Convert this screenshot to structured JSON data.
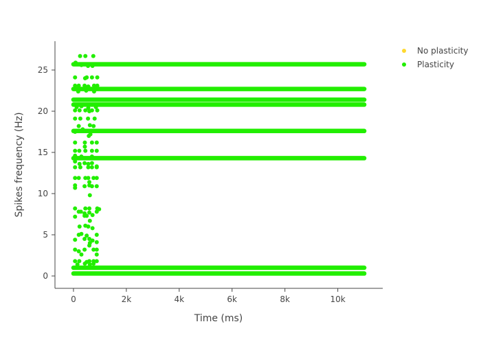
{
  "chart_data": {
    "type": "scatter",
    "title": "",
    "xlabel": "Time (ms)",
    "ylabel": "Spikes frequency (Hz)",
    "xlim": [
      -700,
      11700
    ],
    "ylim": [
      -1.5,
      28.5
    ],
    "x_ticks": [
      {
        "value": 0,
        "label": "0"
      },
      {
        "value": 2000,
        "label": "2k"
      },
      {
        "value": 4000,
        "label": "4k"
      },
      {
        "value": 6000,
        "label": "6k"
      },
      {
        "value": 8000,
        "label": "8k"
      },
      {
        "value": 10000,
        "label": "10k"
      }
    ],
    "y_ticks": [
      {
        "value": 0,
        "label": "0"
      },
      {
        "value": 5,
        "label": "5"
      },
      {
        "value": 10,
        "label": "10"
      },
      {
        "value": 15,
        "label": "15"
      },
      {
        "value": 20,
        "label": "20"
      },
      {
        "value": 25,
        "label": "25"
      }
    ],
    "grid": false,
    "legend_position": "top-right",
    "series": [
      {
        "name": "No plasticity",
        "color": "#FFD92F",
        "bands": [],
        "points": []
      },
      {
        "name": "Plasticity",
        "color": "#22EE00",
        "bands": [
          {
            "y": 0.3,
            "x_start": 0,
            "x_end": 11000
          },
          {
            "y": 1.0,
            "x_start": 0,
            "x_end": 11000
          },
          {
            "y": 14.3,
            "x_start": 0,
            "x_end": 11000
          },
          {
            "y": 17.6,
            "x_start": 0,
            "x_end": 11000
          },
          {
            "y": 20.8,
            "x_start": 0,
            "x_end": 11000
          },
          {
            "y": 21.4,
            "x_start": 0,
            "x_end": 11000
          },
          {
            "y": 22.7,
            "x_start": 0,
            "x_end": 11000
          },
          {
            "y": 25.7,
            "x_start": 0,
            "x_end": 11000
          }
        ],
        "points": [
          {
            "x": 250,
            "y": 26.7
          },
          {
            "x": 450,
            "y": 26.7
          },
          {
            "x": 750,
            "y": 26.7
          },
          {
            "x": 80,
            "y": 25.9
          },
          {
            "x": 300,
            "y": 25.6
          },
          {
            "x": 550,
            "y": 25.5
          },
          {
            "x": 720,
            "y": 25.5
          },
          {
            "x": 60,
            "y": 24.1
          },
          {
            "x": 440,
            "y": 24.0
          },
          {
            "x": 500,
            "y": 24.1
          },
          {
            "x": 700,
            "y": 24.1
          },
          {
            "x": 900,
            "y": 24.1
          },
          {
            "x": 60,
            "y": 23.1
          },
          {
            "x": 200,
            "y": 23.1
          },
          {
            "x": 420,
            "y": 23.1
          },
          {
            "x": 560,
            "y": 23.0
          },
          {
            "x": 780,
            "y": 23.1
          },
          {
            "x": 900,
            "y": 23.1
          },
          {
            "x": 180,
            "y": 22.4
          },
          {
            "x": 480,
            "y": 22.5
          },
          {
            "x": 780,
            "y": 22.4
          },
          {
            "x": 120,
            "y": 20.5
          },
          {
            "x": 300,
            "y": 20.6
          },
          {
            "x": 560,
            "y": 20.4
          },
          {
            "x": 850,
            "y": 20.5
          },
          {
            "x": 60,
            "y": 20.1
          },
          {
            "x": 230,
            "y": 20.1
          },
          {
            "x": 450,
            "y": 20.1
          },
          {
            "x": 600,
            "y": 20.0
          },
          {
            "x": 700,
            "y": 20.1
          },
          {
            "x": 900,
            "y": 20.1
          },
          {
            "x": 60,
            "y": 19.1
          },
          {
            "x": 260,
            "y": 19.1
          },
          {
            "x": 550,
            "y": 19.1
          },
          {
            "x": 800,
            "y": 19.1
          },
          {
            "x": 200,
            "y": 18.2
          },
          {
            "x": 620,
            "y": 18.3
          },
          {
            "x": 760,
            "y": 18.2
          },
          {
            "x": 60,
            "y": 17.5
          },
          {
            "x": 350,
            "y": 17.8
          },
          {
            "x": 650,
            "y": 17.5
          },
          {
            "x": 580,
            "y": 17.0
          },
          {
            "x": 640,
            "y": 17.2
          },
          {
            "x": 60,
            "y": 16.2
          },
          {
            "x": 430,
            "y": 16.2
          },
          {
            "x": 700,
            "y": 16.2
          },
          {
            "x": 880,
            "y": 16.2
          },
          {
            "x": 430,
            "y": 15.7
          },
          {
            "x": 60,
            "y": 15.2
          },
          {
            "x": 220,
            "y": 15.2
          },
          {
            "x": 450,
            "y": 15.2
          },
          {
            "x": 700,
            "y": 15.2
          },
          {
            "x": 880,
            "y": 15.2
          },
          {
            "x": 60,
            "y": 14.6
          },
          {
            "x": 300,
            "y": 14.5
          },
          {
            "x": 700,
            "y": 14.5
          },
          {
            "x": 60,
            "y": 13.9
          },
          {
            "x": 230,
            "y": 13.6
          },
          {
            "x": 420,
            "y": 13.7
          },
          {
            "x": 560,
            "y": 13.6
          },
          {
            "x": 700,
            "y": 13.7
          },
          {
            "x": 880,
            "y": 13.3
          },
          {
            "x": 60,
            "y": 13.2
          },
          {
            "x": 260,
            "y": 13.2
          },
          {
            "x": 560,
            "y": 13.2
          },
          {
            "x": 700,
            "y": 13.2
          },
          {
            "x": 880,
            "y": 13.2
          },
          {
            "x": 60,
            "y": 11.9
          },
          {
            "x": 200,
            "y": 11.9
          },
          {
            "x": 450,
            "y": 11.9
          },
          {
            "x": 560,
            "y": 11.9
          },
          {
            "x": 760,
            "y": 11.9
          },
          {
            "x": 880,
            "y": 11.9
          },
          {
            "x": 600,
            "y": 11.4
          },
          {
            "x": 60,
            "y": 11.0
          },
          {
            "x": 420,
            "y": 10.9
          },
          {
            "x": 600,
            "y": 11.0
          },
          {
            "x": 700,
            "y": 10.9
          },
          {
            "x": 880,
            "y": 10.9
          },
          {
            "x": 60,
            "y": 10.7
          },
          {
            "x": 620,
            "y": 9.8
          },
          {
            "x": 60,
            "y": 8.2
          },
          {
            "x": 450,
            "y": 8.2
          },
          {
            "x": 600,
            "y": 8.2
          },
          {
            "x": 900,
            "y": 8.2
          },
          {
            "x": 970,
            "y": 8.1
          },
          {
            "x": 200,
            "y": 7.8
          },
          {
            "x": 280,
            "y": 7.8
          },
          {
            "x": 420,
            "y": 7.6
          },
          {
            "x": 600,
            "y": 7.7
          },
          {
            "x": 880,
            "y": 7.8
          },
          {
            "x": 60,
            "y": 7.2
          },
          {
            "x": 420,
            "y": 7.3
          },
          {
            "x": 500,
            "y": 7.3
          },
          {
            "x": 720,
            "y": 7.4
          },
          {
            "x": 620,
            "y": 6.7
          },
          {
            "x": 230,
            "y": 6.0
          },
          {
            "x": 450,
            "y": 6.1
          },
          {
            "x": 560,
            "y": 6.0
          },
          {
            "x": 720,
            "y": 5.8
          },
          {
            "x": 200,
            "y": 5.0
          },
          {
            "x": 300,
            "y": 5.1
          },
          {
            "x": 500,
            "y": 4.9
          },
          {
            "x": 880,
            "y": 5.0
          },
          {
            "x": 60,
            "y": 4.4
          },
          {
            "x": 420,
            "y": 4.5
          },
          {
            "x": 600,
            "y": 4.5
          },
          {
            "x": 720,
            "y": 4.3
          },
          {
            "x": 620,
            "y": 4.0
          },
          {
            "x": 880,
            "y": 4.1
          },
          {
            "x": 600,
            "y": 3.7
          },
          {
            "x": 60,
            "y": 3.2
          },
          {
            "x": 200,
            "y": 3.0
          },
          {
            "x": 420,
            "y": 3.2
          },
          {
            "x": 760,
            "y": 3.2
          },
          {
            "x": 880,
            "y": 3.2
          },
          {
            "x": 300,
            "y": 2.6
          },
          {
            "x": 880,
            "y": 2.6
          },
          {
            "x": 60,
            "y": 1.8
          },
          {
            "x": 220,
            "y": 1.8
          },
          {
            "x": 500,
            "y": 1.7
          },
          {
            "x": 600,
            "y": 1.8
          },
          {
            "x": 760,
            "y": 1.8
          },
          {
            "x": 880,
            "y": 1.8
          },
          {
            "x": 150,
            "y": 1.4
          },
          {
            "x": 430,
            "y": 1.5
          },
          {
            "x": 620,
            "y": 1.4
          },
          {
            "x": 760,
            "y": 1.5
          }
        ]
      }
    ]
  }
}
